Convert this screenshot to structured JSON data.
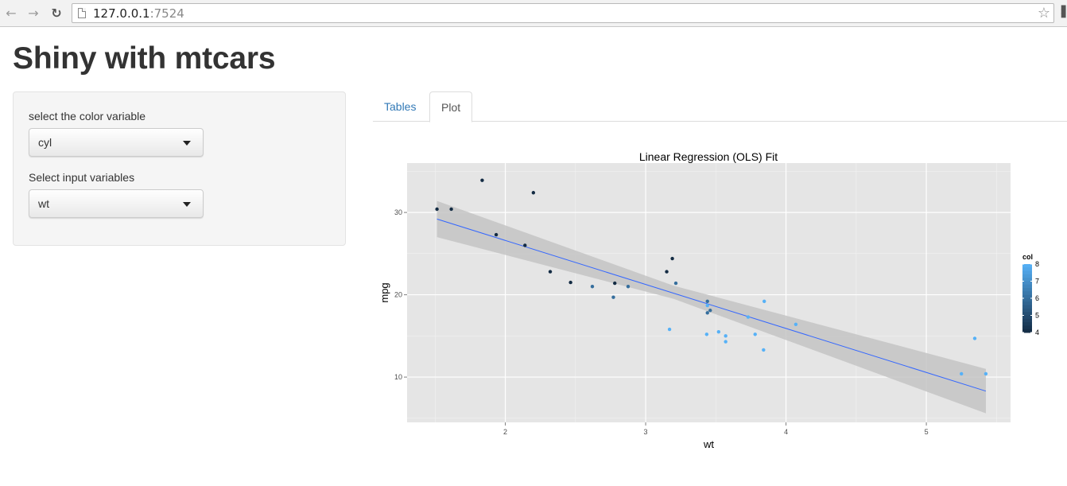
{
  "browser": {
    "url_host": "127.0.0.1",
    "url_port": ":7524"
  },
  "page": {
    "title": "Shiny with mtcars"
  },
  "sidebar": {
    "color_label": "select the color variable",
    "color_value": "cyl",
    "input_label": "Select input variables",
    "input_value": "wt"
  },
  "tabs": [
    {
      "label": "Tables",
      "active": false
    },
    {
      "label": "Plot",
      "active": true
    }
  ],
  "colors": {
    "link": "#337ab7",
    "panel_bg": "#e5e5e5",
    "fit_line": "#3366ff",
    "ribbon": "#c4c4c4",
    "low_color": "#132b43",
    "high_color": "#56b1f7"
  },
  "chart_data": {
    "type": "scatter",
    "title": "Linear Regression (OLS) Fit",
    "xlabel": "wt",
    "ylabel": "mpg",
    "xlim": [
      1.3,
      5.6
    ],
    "ylim": [
      4.5,
      36
    ],
    "xticks": [
      2,
      3,
      4,
      5
    ],
    "yticks": [
      10,
      20,
      30
    ],
    "grid": true,
    "legend": {
      "title": "col",
      "position": "right",
      "type": "colorbar",
      "range": [
        4,
        8
      ],
      "ticks": [
        4,
        5,
        6,
        7,
        8
      ]
    },
    "points": [
      {
        "x": 2.62,
        "y": 21.0,
        "c": 6
      },
      {
        "x": 2.875,
        "y": 21.0,
        "c": 6
      },
      {
        "x": 2.32,
        "y": 22.8,
        "c": 4
      },
      {
        "x": 3.215,
        "y": 21.4,
        "c": 6
      },
      {
        "x": 3.44,
        "y": 18.7,
        "c": 8
      },
      {
        "x": 3.46,
        "y": 18.1,
        "c": 6
      },
      {
        "x": 3.57,
        "y": 14.3,
        "c": 8
      },
      {
        "x": 3.19,
        "y": 24.4,
        "c": 4
      },
      {
        "x": 3.15,
        "y": 22.8,
        "c": 4
      },
      {
        "x": 3.44,
        "y": 19.2,
        "c": 6
      },
      {
        "x": 3.44,
        "y": 17.8,
        "c": 6
      },
      {
        "x": 4.07,
        "y": 16.4,
        "c": 8
      },
      {
        "x": 3.73,
        "y": 17.3,
        "c": 8
      },
      {
        "x": 3.78,
        "y": 15.2,
        "c": 8
      },
      {
        "x": 5.25,
        "y": 10.4,
        "c": 8
      },
      {
        "x": 5.424,
        "y": 10.4,
        "c": 8
      },
      {
        "x": 5.345,
        "y": 14.7,
        "c": 8
      },
      {
        "x": 2.2,
        "y": 32.4,
        "c": 4
      },
      {
        "x": 1.615,
        "y": 30.4,
        "c": 4
      },
      {
        "x": 1.835,
        "y": 33.9,
        "c": 4
      },
      {
        "x": 2.465,
        "y": 21.5,
        "c": 4
      },
      {
        "x": 3.52,
        "y": 15.5,
        "c": 8
      },
      {
        "x": 3.435,
        "y": 15.2,
        "c": 8
      },
      {
        "x": 3.84,
        "y": 13.3,
        "c": 8
      },
      {
        "x": 3.845,
        "y": 19.2,
        "c": 8
      },
      {
        "x": 1.935,
        "y": 27.3,
        "c": 4
      },
      {
        "x": 2.14,
        "y": 26.0,
        "c": 4
      },
      {
        "x": 1.513,
        "y": 30.4,
        "c": 4
      },
      {
        "x": 3.17,
        "y": 15.8,
        "c": 8
      },
      {
        "x": 2.77,
        "y": 19.7,
        "c": 6
      },
      {
        "x": 3.57,
        "y": 15.0,
        "c": 8
      },
      {
        "x": 2.78,
        "y": 21.4,
        "c": 4
      }
    ],
    "fit": {
      "x": [
        1.513,
        5.424
      ],
      "y": [
        29.2,
        8.3
      ]
    },
    "band": {
      "x": [
        1.513,
        3.2,
        5.424
      ],
      "upper": [
        31.4,
        21.1,
        11.0
      ],
      "lower": [
        27.0,
        19.5,
        5.6
      ]
    }
  }
}
